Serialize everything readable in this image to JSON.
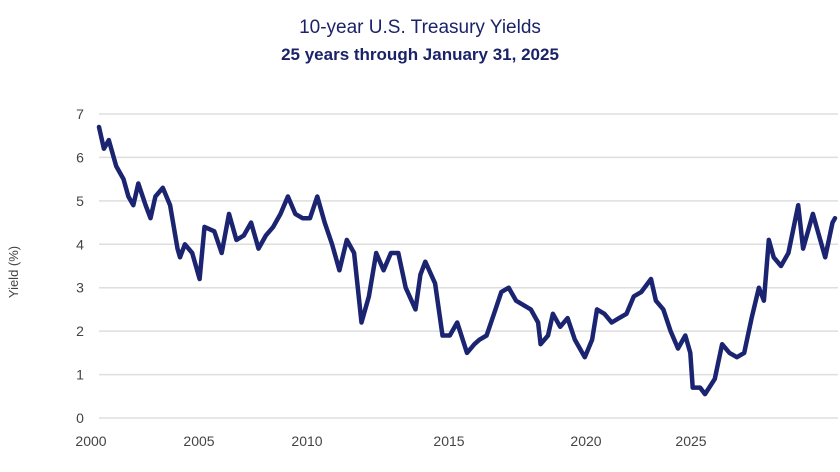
{
  "chart_data": {
    "type": "line",
    "title": "10-year U.S. Treasury Yields",
    "subtitle": "25 years through January 31, 2025",
    "xlabel": "",
    "ylabel": "Yield (%)",
    "ylim": [
      0,
      7
    ],
    "yticks": [
      "0",
      "1",
      "2",
      "3",
      "4",
      "5",
      "6",
      "7"
    ],
    "xlim": [
      "2000-01",
      "2025-01"
    ],
    "xtick_labels": [
      "2000",
      "2005",
      "2010",
      "2015",
      "2020",
      "2025"
    ],
    "grid": "horizontal",
    "line_color": "#1b2470",
    "series": [
      {
        "x": [
          "2000-01",
          "2000-03",
          "2000-05",
          "2000-08",
          "2000-11",
          "2001-01",
          "2001-03",
          "2001-05",
          "2001-08",
          "2001-10",
          "2001-12",
          "2002-03",
          "2002-06",
          "2002-09",
          "2002-10",
          "2002-12",
          "2003-03",
          "2003-06",
          "2003-08",
          "2003-12",
          "2004-03",
          "2004-06",
          "2004-09",
          "2004-12",
          "2005-03",
          "2005-06",
          "2005-09",
          "2005-12",
          "2006-03",
          "2006-06",
          "2006-09",
          "2006-12",
          "2007-03",
          "2007-06",
          "2007-09",
          "2007-12",
          "2008-03",
          "2008-06",
          "2008-09",
          "2008-12",
          "2009-03",
          "2009-06",
          "2009-09",
          "2009-12",
          "2010-03",
          "2010-06",
          "2010-10",
          "2010-12",
          "2011-02",
          "2011-06",
          "2011-09",
          "2011-12",
          "2012-03",
          "2012-07",
          "2012-10",
          "2012-12",
          "2013-03",
          "2013-06",
          "2013-09",
          "2013-12",
          "2014-03",
          "2014-06",
          "2014-09",
          "2014-12",
          "2015-01",
          "2015-04",
          "2015-06",
          "2015-09",
          "2015-12",
          "2016-03",
          "2016-07",
          "2016-10",
          "2016-12",
          "2017-03",
          "2017-06",
          "2017-09",
          "2017-12",
          "2018-03",
          "2018-06",
          "2018-10",
          "2018-12",
          "2019-03",
          "2019-06",
          "2019-09",
          "2019-12",
          "2020-02",
          "2020-03",
          "2020-06",
          "2020-08",
          "2020-12",
          "2021-03",
          "2021-06",
          "2021-09",
          "2021-12",
          "2022-03",
          "2022-06",
          "2022-08",
          "2022-10",
          "2022-12",
          "2023-03",
          "2023-06",
          "2023-10",
          "2023-12",
          "2024-02",
          "2024-04",
          "2024-06",
          "2024-09",
          "2024-12",
          "2025-01"
        ],
        "values": [
          6.7,
          6.2,
          6.4,
          5.8,
          5.5,
          5.1,
          4.9,
          5.4,
          4.9,
          4.6,
          5.1,
          5.3,
          4.9,
          3.9,
          3.7,
          4.0,
          3.8,
          3.2,
          4.4,
          4.3,
          3.8,
          4.7,
          4.1,
          4.2,
          4.5,
          3.9,
          4.2,
          4.4,
          4.7,
          5.1,
          4.7,
          4.6,
          4.6,
          5.1,
          4.5,
          4.0,
          3.4,
          4.1,
          3.8,
          2.2,
          2.8,
          3.8,
          3.4,
          3.8,
          3.8,
          3.0,
          2.5,
          3.3,
          3.6,
          3.1,
          1.9,
          1.9,
          2.2,
          1.5,
          1.7,
          1.8,
          1.9,
          2.4,
          2.9,
          3.0,
          2.7,
          2.6,
          2.5,
          2.2,
          1.7,
          1.9,
          2.4,
          2.1,
          2.3,
          1.8,
          1.4,
          1.8,
          2.5,
          2.4,
          2.2,
          2.3,
          2.4,
          2.8,
          2.9,
          3.2,
          2.7,
          2.5,
          2.0,
          1.6,
          1.9,
          1.5,
          0.7,
          0.7,
          0.55,
          0.9,
          1.7,
          1.5,
          1.4,
          1.5,
          2.3,
          3.0,
          2.7,
          4.1,
          3.7,
          3.5,
          3.8,
          4.9,
          3.9,
          4.3,
          4.7,
          4.3,
          3.7,
          4.5,
          4.6
        ]
      }
    ]
  }
}
